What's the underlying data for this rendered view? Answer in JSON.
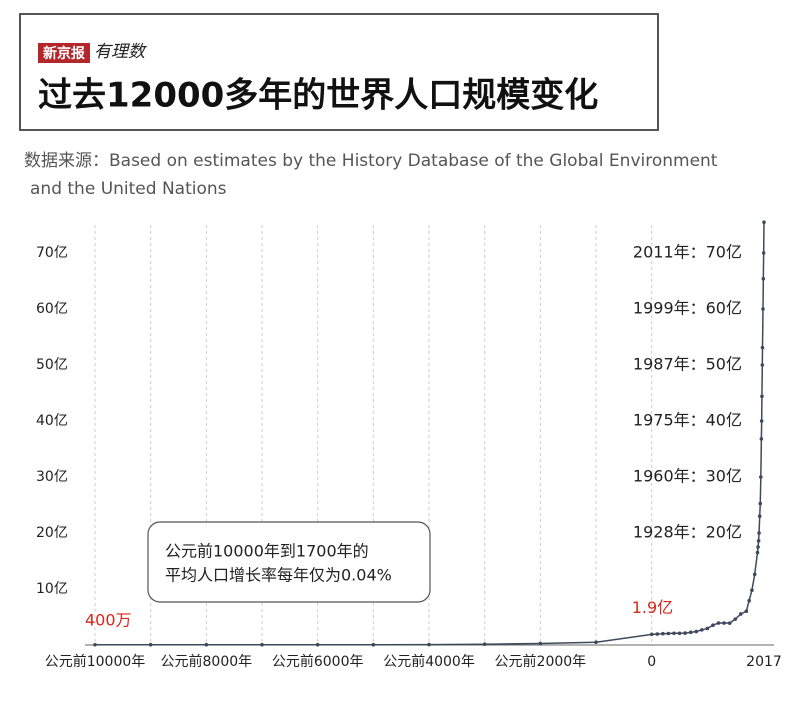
{
  "header": {
    "logo": "新京报",
    "logo_sub": "有理数"
  },
  "chart_data": {
    "type": "line",
    "title": "过去12000多年的世界人口规模变化",
    "source": [
      "数据来源：Based on estimates by the History Database of the Global Environment",
      "and the United Nations"
    ],
    "x": [
      -10000,
      -9000,
      -8000,
      -7000,
      -6000,
      -5000,
      -4000,
      -3000,
      -2000,
      -1000,
      0,
      100,
      200,
      300,
      400,
      500,
      600,
      700,
      800,
      900,
      1000,
      1100,
      1200,
      1300,
      1400,
      1500,
      1600,
      1700,
      1750,
      1800,
      1850,
      1900,
      1910,
      1920,
      1928,
      1940,
      1950,
      1960,
      1970,
      1975,
      1980,
      1987,
      1990,
      1999,
      2005,
      2011,
      2017
    ],
    "series": [
      {
        "name": "世界人口",
        "color": "#3d4a5c",
        "values": [
          0.04,
          0.05,
          0.05,
          0.05,
          0.05,
          0.05,
          0.07,
          0.14,
          0.27,
          0.5,
          1.9,
          1.95,
          2.02,
          2.05,
          2.09,
          2.1,
          2.13,
          2.26,
          2.4,
          2.69,
          2.95,
          3.53,
          3.93,
          3.92,
          3.9,
          4.61,
          5.54,
          6.03,
          7.91,
          9.78,
          12.62,
          16.5,
          17.5,
          18.6,
          20,
          23,
          25.25,
          30,
          36.8,
          40,
          44.4,
          50,
          53.1,
          60,
          65.4,
          70,
          75.5
        ]
      }
    ],
    "xlim": [
      -10000,
      2017
    ],
    "ylim": [
      0,
      75
    ],
    "xticks": [
      {
        "value": -10000,
        "label": "公元前10000年"
      },
      {
        "value": -8000,
        "label": "公元前8000年"
      },
      {
        "value": -6000,
        "label": "公元前6000年"
      },
      {
        "value": -4000,
        "label": "公元前4000年"
      },
      {
        "value": -2000,
        "label": "公元前2000年"
      },
      0,
      2017
    ],
    "xgrid": [
      -10000,
      -9000,
      -8000,
      -7000,
      -6000,
      -5000,
      -4000,
      -3000,
      -2000,
      -1000,
      0
    ],
    "yticks": [
      {
        "value": 10,
        "label": "10亿"
      },
      {
        "value": 20,
        "label": "20亿"
      },
      {
        "value": 30,
        "label": "30亿"
      },
      {
        "value": 40,
        "label": "40亿"
      },
      {
        "value": 50,
        "label": "50亿"
      },
      {
        "value": 60,
        "label": "60亿"
      },
      {
        "value": 70,
        "label": "70亿"
      }
    ],
    "milestones": [
      {
        "value": 70,
        "label": "2011年：70亿"
      },
      {
        "value": 60,
        "label": "1999年：60亿"
      },
      {
        "value": 50,
        "label": "1987年：50亿"
      },
      {
        "value": 40,
        "label": "1975年：40亿"
      },
      {
        "value": 30,
        "label": "1960年：30亿"
      },
      {
        "value": 20,
        "label": "1928年：20亿"
      }
    ],
    "point_labels": [
      {
        "x": -10000,
        "y": 0.04,
        "label": "400万"
      },
      {
        "x": 0,
        "y": 1.9,
        "label": "1.9亿"
      }
    ],
    "annotation": [
      "公元前10000年到1700年的",
      "平均人口增长率每年仅为0.04%"
    ]
  }
}
